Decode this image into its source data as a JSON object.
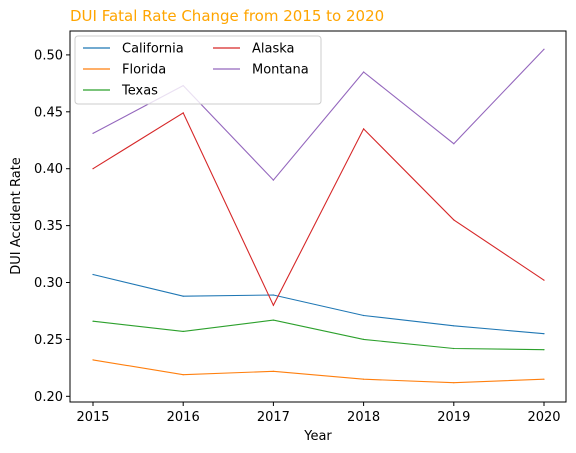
{
  "chart_data": {
    "type": "line",
    "title": "DUI Fatal Rate Change from 2015 to 2020",
    "title_color": "#FFA500",
    "xlabel": "Year",
    "ylabel": "DUI Accident Rate",
    "x": [
      "2015",
      "2016",
      "2017",
      "2018",
      "2019",
      "2020"
    ],
    "ylim": [
      0.195,
      0.521
    ],
    "yticks": [
      "0.20",
      "0.25",
      "0.30",
      "0.35",
      "0.40",
      "0.45",
      "0.50"
    ],
    "grid": false,
    "legend_placement": "top-left",
    "series": [
      {
        "name": "California",
        "color": "#1f77b4",
        "values": [
          0.307,
          0.288,
          0.289,
          0.271,
          0.262,
          0.255
        ]
      },
      {
        "name": "Florida",
        "color": "#ff7f0e",
        "values": [
          0.232,
          0.219,
          0.222,
          0.215,
          0.212,
          0.215
        ]
      },
      {
        "name": "Texas",
        "color": "#2ca02c",
        "values": [
          0.266,
          0.257,
          0.267,
          0.25,
          0.242,
          0.241
        ]
      },
      {
        "name": "Alaska",
        "color": "#d62728",
        "values": [
          0.4,
          0.449,
          0.28,
          0.435,
          0.355,
          0.302
        ]
      },
      {
        "name": "Montana",
        "color": "#9467bd",
        "values": [
          0.431,
          0.473,
          0.39,
          0.485,
          0.422,
          0.505
        ]
      }
    ]
  }
}
